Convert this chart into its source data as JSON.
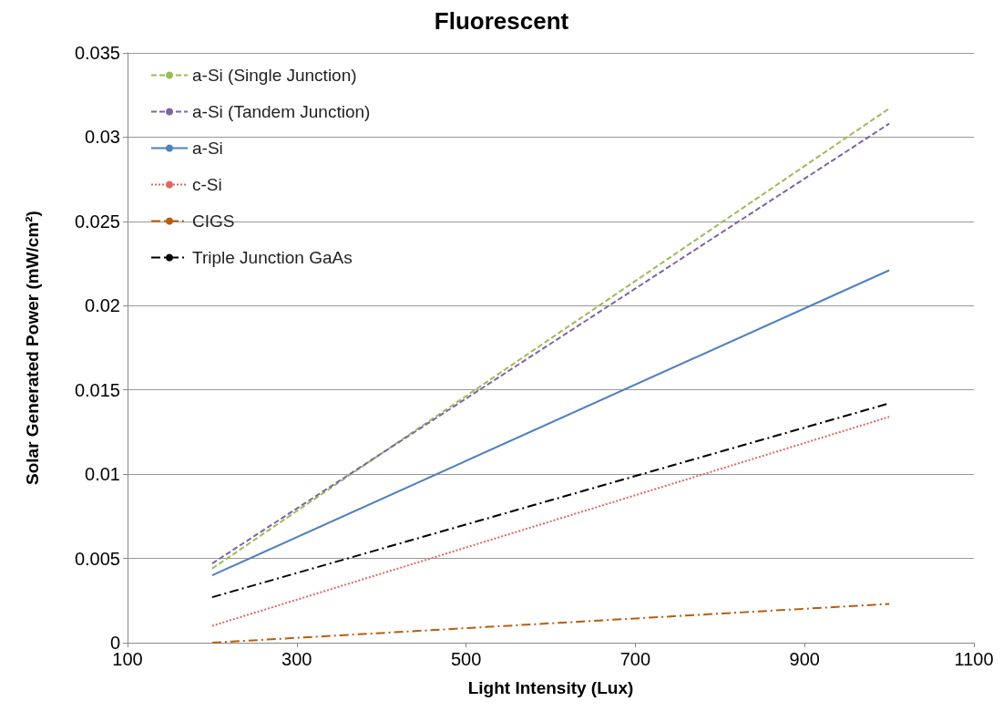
{
  "chart_data": {
    "type": "line",
    "title": "Fluorescent",
    "xlabel": "Light Intensity (Lux)",
    "ylabel": "Solar Generated Power (mW/cm²)",
    "x": [
      200,
      1000
    ],
    "series": [
      {
        "name": "a-Si (Single Junction)",
        "color": "#9bbb59",
        "line_style": "dashed",
        "values": [
          0.0044,
          0.0317
        ]
      },
      {
        "name": "a-Si (Tandem Junction)",
        "color": "#8064a2",
        "line_style": "dashed",
        "values": [
          0.0047,
          0.0308
        ]
      },
      {
        "name": "a-Si",
        "color": "#4f81bd",
        "line_style": "solid",
        "values": [
          0.004,
          0.0221
        ]
      },
      {
        "name": "c-Si",
        "color": "#e06666",
        "line_style": "dotted",
        "values": [
          0.001,
          0.0134
        ]
      },
      {
        "name": "CIGS",
        "color": "#b85e0f",
        "line_style": "dashdot",
        "values": [
          0,
          0.0023
        ]
      },
      {
        "name": "Triple Junction GaAs",
        "color": "#000000",
        "line_style": "dashdot",
        "values": [
          0.0027,
          0.0142
        ]
      }
    ],
    "xlim": [
      100,
      1100
    ],
    "xticks": [
      100,
      300,
      500,
      700,
      900,
      1100
    ],
    "ylim": [
      0,
      0.035
    ],
    "yticks": [
      0,
      0.005,
      0.01,
      0.015,
      0.02,
      0.025,
      0.03,
      0.035
    ],
    "grid": "y",
    "legend": "top left",
    "marker": "none"
  }
}
